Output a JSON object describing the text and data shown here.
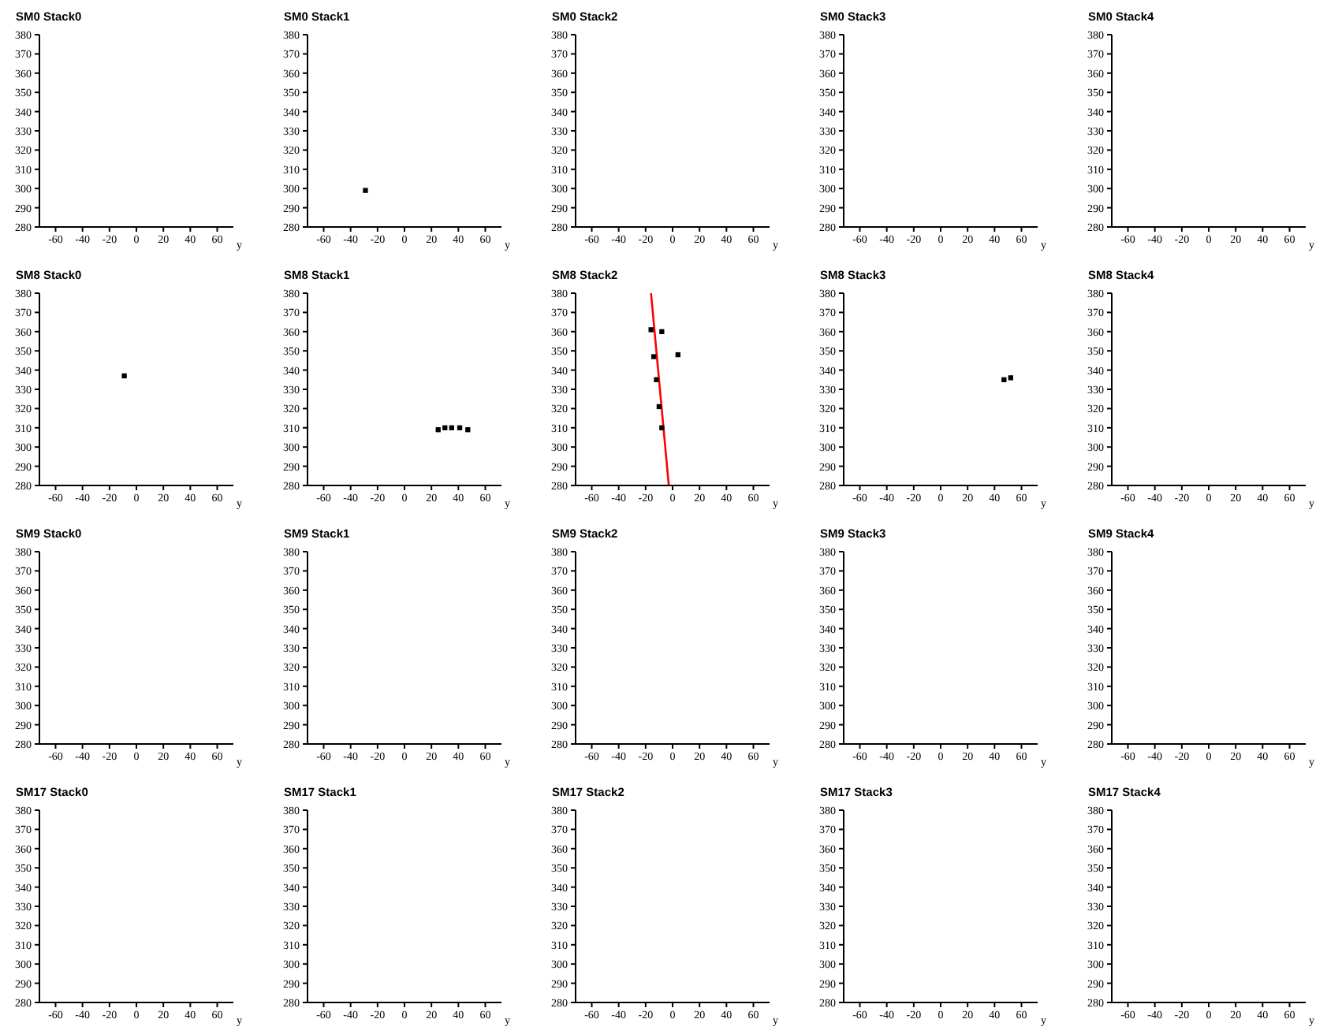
{
  "chart_data": [
    {
      "type": "scatter",
      "title": "SM0 Stack0",
      "xlabel": "y",
      "xlim": [
        -72,
        72
      ],
      "xticks": [
        -60,
        -40,
        -20,
        0,
        20,
        40,
        60
      ],
      "ylim": [
        280,
        380
      ],
      "yticks": [
        280,
        290,
        300,
        310,
        320,
        330,
        340,
        350,
        360,
        370,
        380
      ],
      "grid": false
    },
    {
      "type": "scatter",
      "title": "SM0 Stack1",
      "xlabel": "y",
      "xlim": [
        -72,
        72
      ],
      "xticks": [
        -60,
        -40,
        -20,
        0,
        20,
        40,
        60
      ],
      "ylim": [
        280,
        380
      ],
      "yticks": [
        280,
        290,
        300,
        310,
        320,
        330,
        340,
        350,
        360,
        370,
        380
      ],
      "grid": false,
      "series": [
        {
          "color": "#000000",
          "marker": "square",
          "x": [
            -29
          ],
          "values": [
            299
          ]
        }
      ]
    },
    {
      "type": "scatter",
      "title": "SM0 Stack2",
      "xlabel": "y",
      "xlim": [
        -72,
        72
      ],
      "xticks": [
        -60,
        -40,
        -20,
        0,
        20,
        40,
        60
      ],
      "ylim": [
        280,
        380
      ],
      "yticks": [
        280,
        290,
        300,
        310,
        320,
        330,
        340,
        350,
        360,
        370,
        380
      ],
      "grid": false
    },
    {
      "type": "scatter",
      "title": "SM0 Stack3",
      "xlabel": "y",
      "xlim": [
        -72,
        72
      ],
      "xticks": [
        -60,
        -40,
        -20,
        0,
        20,
        40,
        60
      ],
      "ylim": [
        280,
        380
      ],
      "yticks": [
        280,
        290,
        300,
        310,
        320,
        330,
        340,
        350,
        360,
        370,
        380
      ],
      "grid": false
    },
    {
      "type": "scatter",
      "title": "SM0 Stack4",
      "xlabel": "y",
      "xlim": [
        -72,
        72
      ],
      "xticks": [
        -60,
        -40,
        -20,
        0,
        20,
        40,
        60
      ],
      "ylim": [
        280,
        380
      ],
      "yticks": [
        280,
        290,
        300,
        310,
        320,
        330,
        340,
        350,
        360,
        370,
        380
      ],
      "grid": false
    },
    {
      "type": "scatter",
      "title": "SM8 Stack0",
      "xlabel": "y",
      "xlim": [
        -72,
        72
      ],
      "xticks": [
        -60,
        -40,
        -20,
        0,
        20,
        40,
        60
      ],
      "ylim": [
        280,
        380
      ],
      "yticks": [
        280,
        290,
        300,
        310,
        320,
        330,
        340,
        350,
        360,
        370,
        380
      ],
      "grid": false,
      "series": [
        {
          "color": "#000000",
          "marker": "square",
          "x": [
            -9
          ],
          "values": [
            337
          ]
        }
      ]
    },
    {
      "type": "scatter",
      "title": "SM8 Stack1",
      "xlabel": "y",
      "xlim": [
        -72,
        72
      ],
      "xticks": [
        -60,
        -40,
        -20,
        0,
        20,
        40,
        60
      ],
      "ylim": [
        280,
        380
      ],
      "yticks": [
        280,
        290,
        300,
        310,
        320,
        330,
        340,
        350,
        360,
        370,
        380
      ],
      "grid": false,
      "series": [
        {
          "color": "#000000",
          "marker": "square",
          "x": [
            25,
            30,
            35,
            41,
            47
          ],
          "values": [
            309,
            310,
            310,
            310,
            309
          ]
        }
      ]
    },
    {
      "type": "scatter",
      "title": "SM8 Stack2",
      "xlabel": "y",
      "xlim": [
        -72,
        72
      ],
      "xticks": [
        -60,
        -40,
        -20,
        0,
        20,
        40,
        60
      ],
      "ylim": [
        280,
        380
      ],
      "yticks": [
        280,
        290,
        300,
        310,
        320,
        330,
        340,
        350,
        360,
        370,
        380
      ],
      "grid": false,
      "series": [
        {
          "color": "#000000",
          "marker": "square",
          "x": [
            -16,
            -8,
            -14,
            4,
            -12,
            -10,
            -8
          ],
          "values": [
            361,
            360,
            347,
            348,
            335,
            321,
            310
          ]
        },
        {
          "type": "line",
          "color": "#ff0000",
          "x": [
            -16,
            -2.8
          ],
          "values": [
            380,
            280
          ]
        }
      ]
    },
    {
      "type": "scatter",
      "title": "SM8 Stack3",
      "xlabel": "y",
      "xlim": [
        -72,
        72
      ],
      "xticks": [
        -60,
        -40,
        -20,
        0,
        20,
        40,
        60
      ],
      "ylim": [
        280,
        380
      ],
      "yticks": [
        280,
        290,
        300,
        310,
        320,
        330,
        340,
        350,
        360,
        370,
        380
      ],
      "grid": false,
      "series": [
        {
          "color": "#000000",
          "marker": "square",
          "x": [
            47,
            52
          ],
          "values": [
            335,
            336
          ]
        }
      ]
    },
    {
      "type": "scatter",
      "title": "SM8 Stack4",
      "xlabel": "y",
      "xlim": [
        -72,
        72
      ],
      "xticks": [
        -60,
        -40,
        -20,
        0,
        20,
        40,
        60
      ],
      "ylim": [
        280,
        380
      ],
      "yticks": [
        280,
        290,
        300,
        310,
        320,
        330,
        340,
        350,
        360,
        370,
        380
      ],
      "grid": false
    },
    {
      "type": "scatter",
      "title": "SM9 Stack0",
      "xlabel": "y",
      "xlim": [
        -72,
        72
      ],
      "xticks": [
        -60,
        -40,
        -20,
        0,
        20,
        40,
        60
      ],
      "ylim": [
        280,
        380
      ],
      "yticks": [
        280,
        290,
        300,
        310,
        320,
        330,
        340,
        350,
        360,
        370,
        380
      ],
      "grid": false
    },
    {
      "type": "scatter",
      "title": "SM9 Stack1",
      "xlabel": "y",
      "xlim": [
        -72,
        72
      ],
      "xticks": [
        -60,
        -40,
        -20,
        0,
        20,
        40,
        60
      ],
      "ylim": [
        280,
        380
      ],
      "yticks": [
        280,
        290,
        300,
        310,
        320,
        330,
        340,
        350,
        360,
        370,
        380
      ],
      "grid": false
    },
    {
      "type": "scatter",
      "title": "SM9 Stack2",
      "xlabel": "y",
      "xlim": [
        -72,
        72
      ],
      "xticks": [
        -60,
        -40,
        -20,
        0,
        20,
        40,
        60
      ],
      "ylim": [
        280,
        380
      ],
      "yticks": [
        280,
        290,
        300,
        310,
        320,
        330,
        340,
        350,
        360,
        370,
        380
      ],
      "grid": false
    },
    {
      "type": "scatter",
      "title": "SM9 Stack3",
      "xlabel": "y",
      "xlim": [
        -72,
        72
      ],
      "xticks": [
        -60,
        -40,
        -20,
        0,
        20,
        40,
        60
      ],
      "ylim": [
        280,
        380
      ],
      "yticks": [
        280,
        290,
        300,
        310,
        320,
        330,
        340,
        350,
        360,
        370,
        380
      ],
      "grid": false
    },
    {
      "type": "scatter",
      "title": "SM9 Stack4",
      "xlabel": "y",
      "xlim": [
        -72,
        72
      ],
      "xticks": [
        -60,
        -40,
        -20,
        0,
        20,
        40,
        60
      ],
      "ylim": [
        280,
        380
      ],
      "yticks": [
        280,
        290,
        300,
        310,
        320,
        330,
        340,
        350,
        360,
        370,
        380
      ],
      "grid": false
    },
    {
      "type": "scatter",
      "title": "SM17 Stack0",
      "xlabel": "y",
      "xlim": [
        -72,
        72
      ],
      "xticks": [
        -60,
        -40,
        -20,
        0,
        20,
        40,
        60
      ],
      "ylim": [
        280,
        380
      ],
      "yticks": [
        280,
        290,
        300,
        310,
        320,
        330,
        340,
        350,
        360,
        370,
        380
      ],
      "grid": false
    },
    {
      "type": "scatter",
      "title": "SM17 Stack1",
      "xlabel": "y",
      "xlim": [
        -72,
        72
      ],
      "xticks": [
        -60,
        -40,
        -20,
        0,
        20,
        40,
        60
      ],
      "ylim": [
        280,
        380
      ],
      "yticks": [
        280,
        290,
        300,
        310,
        320,
        330,
        340,
        350,
        360,
        370,
        380
      ],
      "grid": false
    },
    {
      "type": "scatter",
      "title": "SM17 Stack2",
      "xlabel": "y",
      "xlim": [
        -72,
        72
      ],
      "xticks": [
        -60,
        -40,
        -20,
        0,
        20,
        40,
        60
      ],
      "ylim": [
        280,
        380
      ],
      "yticks": [
        280,
        290,
        300,
        310,
        320,
        330,
        340,
        350,
        360,
        370,
        380
      ],
      "grid": false
    },
    {
      "type": "scatter",
      "title": "SM17 Stack3",
      "xlabel": "y",
      "xlim": [
        -72,
        72
      ],
      "xticks": [
        -60,
        -40,
        -20,
        0,
        20,
        40,
        60
      ],
      "ylim": [
        280,
        380
      ],
      "yticks": [
        280,
        290,
        300,
        310,
        320,
        330,
        340,
        350,
        360,
        370,
        380
      ],
      "grid": false
    },
    {
      "type": "scatter",
      "title": "SM17 Stack4",
      "xlabel": "y",
      "xlim": [
        -72,
        72
      ],
      "xticks": [
        -60,
        -40,
        -20,
        0,
        20,
        40,
        60
      ],
      "ylim": [
        280,
        380
      ],
      "yticks": [
        280,
        290,
        300,
        310,
        320,
        330,
        340,
        350,
        360,
        370,
        380
      ],
      "grid": false
    }
  ]
}
